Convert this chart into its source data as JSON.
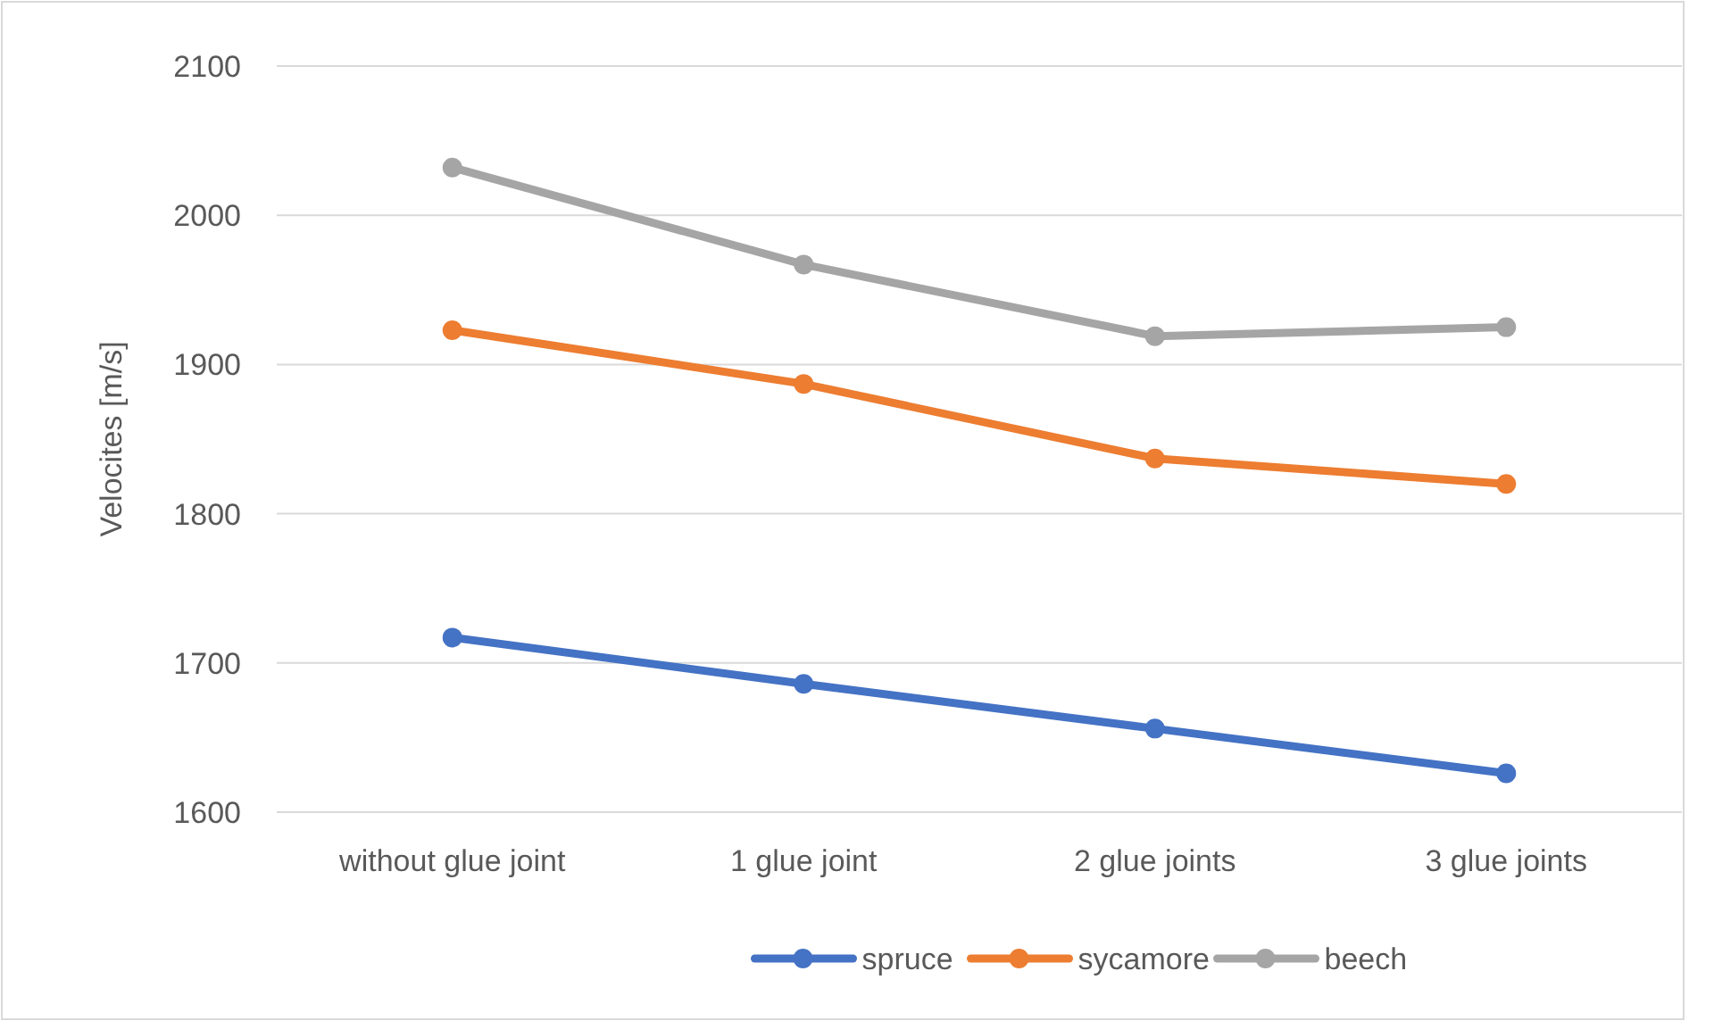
{
  "chart_data": {
    "type": "line",
    "ylabel": "Velocites [m/s]",
    "categories": [
      "without glue joint",
      "1 glue joint",
      "2 glue joints",
      "3 glue joints"
    ],
    "series": [
      {
        "name": "spruce",
        "color": "#4472c4",
        "values": [
          1717,
          1686,
          1656,
          1626
        ]
      },
      {
        "name": "sycamore",
        "color": "#ed7d31",
        "values": [
          1923,
          1887,
          1837,
          1820
        ]
      },
      {
        "name": "beech",
        "color": "#a5a5a5",
        "values": [
          2032,
          1967,
          1919,
          1925
        ]
      }
    ],
    "ylim": [
      1600,
      2100
    ],
    "yticks": [
      1600,
      1700,
      1800,
      1900,
      2000,
      2100
    ],
    "grid": "y",
    "legend": "bottom",
    "marker": "circle",
    "line_style": "solid"
  }
}
